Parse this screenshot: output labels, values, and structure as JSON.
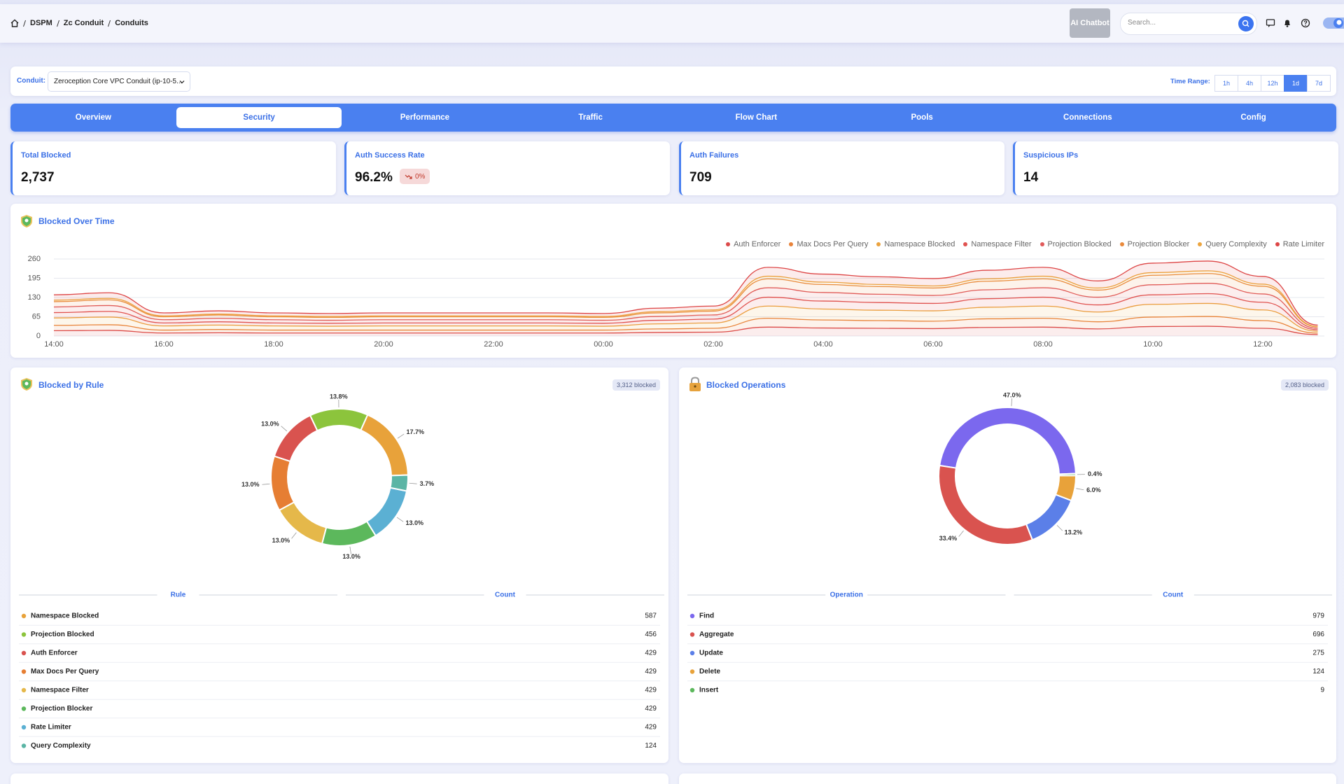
{
  "header": {
    "breadcrumb": [
      "DSPM",
      "Zc Conduit",
      "Conduits"
    ],
    "ai_button": "AI Chatbot",
    "search_placeholder": "Search..."
  },
  "filters": {
    "conduit_label": "Conduit:",
    "conduit_value": "Zeroception Core VPC Conduit (ip-10-5...",
    "time_range_label": "Time Range:",
    "time_ranges": [
      "1h",
      "4h",
      "12h",
      "1d",
      "7d"
    ],
    "active_time_range": 3
  },
  "tabs": {
    "items": [
      "Overview",
      "Security",
      "Performance",
      "Traffic",
      "Flow Chart",
      "Pools",
      "Connections",
      "Config"
    ],
    "active": 1
  },
  "kpis": [
    {
      "label": "Total Blocked",
      "value": "2,737"
    },
    {
      "label": "Auth Success Rate",
      "value": "96.2%",
      "badge": "0%"
    },
    {
      "label": "Auth Failures",
      "value": "709"
    },
    {
      "label": "Suspicious IPs",
      "value": "14"
    }
  ],
  "chart_data": [
    {
      "type": "area",
      "stacked": true,
      "title": "Blocked Over Time",
      "categories": [
        "14:00",
        null,
        "16:00",
        null,
        "18:00",
        null,
        "20:00",
        null,
        "22:00",
        null,
        "00:00",
        null,
        "02:00",
        null,
        "04:00",
        null,
        "06:00",
        null,
        "08:00",
        null,
        "10:00",
        null,
        "12:00",
        null
      ],
      "series": [
        {
          "name": "Auth Enforcer",
          "color": "#dc4a4a",
          "values": [
            18,
            19,
            10,
            11,
            10,
            10,
            10,
            10,
            10,
            10,
            10,
            12,
            13,
            30,
            27,
            26,
            25,
            29,
            30,
            24,
            32,
            33,
            26,
            5
          ]
        },
        {
          "name": "Max Docs Per Query",
          "color": "#e8833a",
          "values": [
            18,
            19,
            10,
            11,
            10,
            10,
            10,
            10,
            10,
            10,
            10,
            12,
            13,
            30,
            27,
            26,
            25,
            29,
            30,
            24,
            32,
            33,
            26,
            5
          ]
        },
        {
          "name": "Namespace Blocked",
          "color": "#eba23e",
          "values": [
            25,
            26,
            14,
            15,
            14,
            13,
            14,
            14,
            14,
            14,
            13,
            17,
            18,
            41,
            37,
            35,
            35,
            39,
            41,
            33,
            43,
            44,
            36,
            6
          ]
        },
        {
          "name": "Namespace Filter",
          "color": "#e0524f",
          "values": [
            18,
            19,
            10,
            11,
            10,
            10,
            10,
            10,
            10,
            10,
            10,
            12,
            13,
            30,
            27,
            26,
            25,
            29,
            30,
            24,
            32,
            33,
            26,
            5
          ]
        },
        {
          "name": "Projection Blocked",
          "color": "#e05a5a",
          "values": [
            19,
            20,
            11,
            12,
            11,
            10,
            11,
            11,
            11,
            11,
            10,
            13,
            14,
            32,
            29,
            28,
            27,
            30,
            32,
            26,
            34,
            35,
            28,
            5
          ]
        },
        {
          "name": "Projection Blocker",
          "color": "#e98a3c",
          "values": [
            18,
            19,
            10,
            11,
            10,
            10,
            10,
            10,
            10,
            10,
            10,
            12,
            13,
            30,
            27,
            26,
            25,
            29,
            30,
            24,
            32,
            33,
            26,
            5
          ]
        },
        {
          "name": "Query Complexity",
          "color": "#eca53f",
          "values": [
            5,
            5,
            3,
            3,
            3,
            3,
            3,
            3,
            3,
            3,
            3,
            4,
            4,
            9,
            8,
            7,
            7,
            8,
            9,
            7,
            9,
            9,
            7,
            1
          ]
        },
        {
          "name": "Rate Limiter",
          "color": "#dd4545",
          "values": [
            18,
            19,
            10,
            11,
            10,
            10,
            10,
            10,
            10,
            10,
            10,
            12,
            13,
            30,
            27,
            26,
            25,
            29,
            30,
            24,
            32,
            33,
            26,
            5
          ]
        }
      ],
      "ylim": [
        0,
        260
      ],
      "yticks": [
        0,
        65,
        130,
        195,
        260
      ],
      "grid": true,
      "legend": "top-right"
    },
    {
      "type": "donut",
      "title": "Blocked by Rule",
      "total_label": "3,312 blocked",
      "table_headers": [
        "Rule",
        "Count"
      ],
      "categories": [
        "Namespace Blocked",
        "Projection Blocked",
        "Auth Enforcer",
        "Max Docs Per Query",
        "Namespace Filter",
        "Projection Blocker",
        "Rate Limiter",
        "Query Complexity"
      ],
      "values": [
        587,
        456,
        429,
        429,
        429,
        429,
        429,
        124
      ],
      "value_labels": [
        "17.7%",
        "13.8%",
        "13.0%",
        "13.0%",
        "13.0%",
        "13.0%",
        "13.0%",
        "3.7%"
      ],
      "colors": [
        "#e8a23a",
        "#8cc43c",
        "#d9534f",
        "#e67e33",
        "#e5b84a",
        "#5cb85c",
        "#5bb0d3",
        "#5bb5a5"
      ]
    },
    {
      "type": "donut",
      "title": "Blocked Operations",
      "total_label": "2,083 blocked",
      "table_headers": [
        "Operation",
        "Count"
      ],
      "categories": [
        "Find",
        "Aggregate",
        "Update",
        "Delete",
        "Insert"
      ],
      "values": [
        979,
        696,
        275,
        124,
        9
      ],
      "value_labels": [
        "47.0%",
        "33.4%",
        "13.2%",
        "6.0%",
        "0.4%"
      ],
      "colors": [
        "#7b68ee",
        "#d9534f",
        "#5b7fe8",
        "#e8a23a",
        "#5cb85c"
      ]
    }
  ]
}
